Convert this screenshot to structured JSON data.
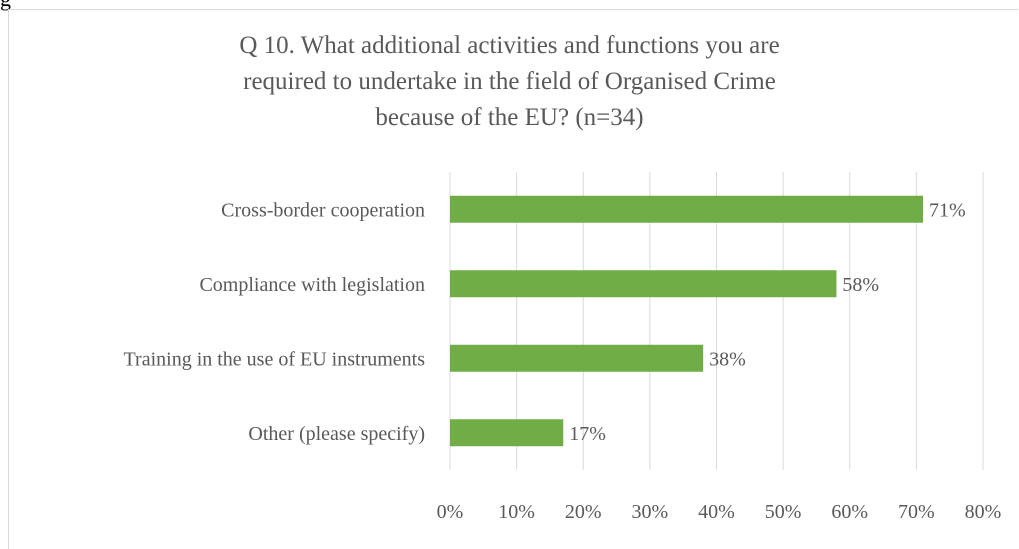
{
  "page": {
    "top_fragment": "g"
  },
  "chart_data": {
    "type": "bar",
    "orientation": "horizontal",
    "title_lines": [
      "Q 10. What additional activities and functions you are",
      "required to undertake in the field of Organised Crime",
      "because of the EU? (n=34)"
    ],
    "categories": [
      "Cross-border cooperation",
      "Compliance with legislation",
      "Training in the use of EU instruments",
      "Other (please specify)"
    ],
    "values": [
      71,
      58,
      38,
      17
    ],
    "data_labels": [
      "71%",
      "58%",
      "38%",
      "17%"
    ],
    "xlim": [
      0,
      80
    ],
    "xticks": [
      0,
      10,
      20,
      30,
      40,
      50,
      60,
      70,
      80
    ],
    "xtick_labels": [
      "0%",
      "10%",
      "20%",
      "30%",
      "40%",
      "50%",
      "60%",
      "70%",
      "80%"
    ],
    "grid": "vertical",
    "legend": "none",
    "bar_color": "#70ad47",
    "grid_color": "#d9d9d9"
  }
}
